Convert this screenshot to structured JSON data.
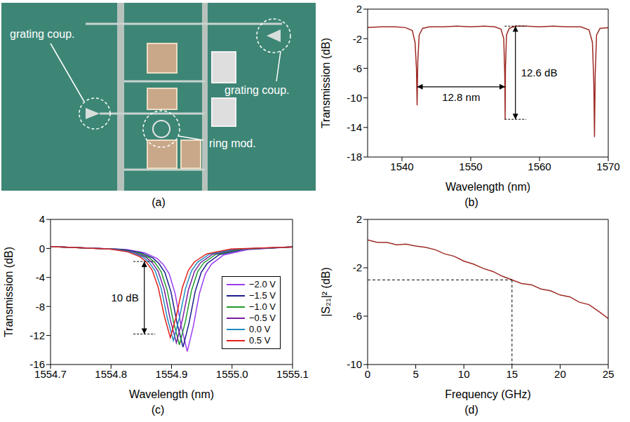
{
  "photo": {
    "caption": "(a)",
    "annotations": [
      "grating coup.",
      "grating coup.",
      "ring mod."
    ]
  },
  "chart_data": [
    {
      "type": "line",
      "caption": "(b)",
      "x_label": "Wavelength (nm)",
      "y_label": "Transmission (dB)",
      "color": "#9e2b25",
      "x": [
        1535,
        1537,
        1539,
        1540.5,
        1541.5,
        1541.9,
        1542.1,
        1542.2,
        1542.3,
        1542.5,
        1543,
        1544,
        1546,
        1548,
        1550,
        1552,
        1553.5,
        1554.4,
        1554.8,
        1554.95,
        1555.0,
        1555.05,
        1555.2,
        1555.6,
        1556.5,
        1558,
        1560,
        1562,
        1564,
        1566,
        1567.2,
        1567.7,
        1567.9,
        1568.0,
        1568.1,
        1568.3,
        1568.8,
        1570
      ],
      "values": [
        -0.5,
        -0.4,
        -0.4,
        -0.5,
        -0.9,
        -2.5,
        -6,
        -11,
        -5,
        -1.5,
        -0.6,
        -0.4,
        -0.4,
        -0.3,
        -0.4,
        -0.3,
        -0.4,
        -0.7,
        -2,
        -7,
        -12.9,
        -6,
        -1.5,
        -0.6,
        -0.3,
        -0.3,
        -0.4,
        -0.3,
        -0.4,
        -0.4,
        -0.8,
        -2.5,
        -8,
        -15.3,
        -7,
        -1.5,
        -0.6,
        -0.5
      ],
      "xlim": [
        1535,
        1570
      ],
      "xticks": [
        1540,
        1550,
        1560,
        1570
      ],
      "ylim": [
        -18,
        2
      ],
      "yticks": [
        -18,
        -14,
        -10,
        -6,
        -2,
        2
      ],
      "grid": false,
      "annotations": [
        {
          "text": "12.8 nm",
          "x": [
            1542.2,
            1555
          ],
          "y": -8.5
        },
        {
          "text": "12.6 dB",
          "x": 1556.5,
          "y": [
            -0.3,
            -12.9
          ]
        }
      ]
    },
    {
      "type": "line",
      "caption": "(c)",
      "x_label": "Wavelength (nm)",
      "y_label": "Transmission (dB)",
      "xlim": [
        1554.7,
        1555.1
      ],
      "xticks": [
        1554.7,
        1554.8,
        1554.9,
        {
          "value": 1555,
          "label": "1555.0"
        },
        1555.1
      ],
      "ylim": [
        -16,
        4
      ],
      "yticks": [
        -16,
        -12,
        -8,
        -4,
        0,
        4
      ],
      "grid": false,
      "legend": "right",
      "series": [
        {
          "name": "−2.0 V",
          "color": "#9a3cf0",
          "x": [
            1554.7,
            1554.826,
            1554.856,
            1554.876,
            1554.886,
            1554.896,
            1554.906,
            1554.916,
            1554.926,
            1554.936,
            1554.946,
            1554.956,
            1554.966,
            1554.986,
            1555.026,
            1555.1
          ],
          "values": [
            0.25,
            -0.15,
            -0.6,
            -1.37,
            -2.17,
            -3.47,
            -6.23,
            -10.72,
            -14.2,
            -10.72,
            -6.23,
            -3.47,
            -2.17,
            -0.9,
            -0.15,
            0.2
          ]
        },
        {
          "name": "−1.5 V",
          "color": "#1c1c8c",
          "x": [
            1554.7,
            1554.819,
            1554.849,
            1554.869,
            1554.879,
            1554.889,
            1554.899,
            1554.909,
            1554.919,
            1554.929,
            1554.939,
            1554.949,
            1554.959,
            1554.979,
            1555.019,
            1555.1
          ],
          "values": [
            0.25,
            -0.13,
            -0.56,
            -1.3,
            -2.06,
            -3.31,
            -5.96,
            -10.26,
            -13.6,
            -10.26,
            -5.96,
            -3.31,
            -2.06,
            -0.85,
            -0.13,
            0.2
          ]
        },
        {
          "name": "−1.0 V",
          "color": "#1f9a2a",
          "x": [
            1554.7,
            1554.813,
            1554.843,
            1554.863,
            1554.873,
            1554.883,
            1554.893,
            1554.903,
            1554.913,
            1554.923,
            1554.933,
            1554.943,
            1554.953,
            1554.973,
            1555.013,
            1555.1
          ],
          "values": [
            0.25,
            -0.12,
            -0.54,
            -1.26,
            -2.01,
            -3.24,
            -5.82,
            -10.04,
            -13.3,
            -10.04,
            -5.82,
            -3.24,
            -2.01,
            -0.83,
            -0.12,
            0.2
          ]
        },
        {
          "name": "−0.5 V",
          "color": "#7a1fa0",
          "x": [
            1554.7,
            1554.808,
            1554.838,
            1554.858,
            1554.868,
            1554.878,
            1554.888,
            1554.898,
            1554.908,
            1554.918,
            1554.928,
            1554.938,
            1554.948,
            1554.968,
            1555.008,
            1555.1
          ],
          "values": [
            0.25,
            -0.11,
            -0.52,
            -1.23,
            -1.96,
            -3.16,
            -5.69,
            -9.81,
            -13.0,
            -9.81,
            -5.69,
            -3.16,
            -1.96,
            -0.8,
            -0.11,
            0.2
          ]
        },
        {
          "name": "0.0 V",
          "color": "#1f8cc0",
          "x": [
            1554.7,
            1554.803,
            1554.833,
            1554.853,
            1554.863,
            1554.873,
            1554.883,
            1554.893,
            1554.903,
            1554.913,
            1554.923,
            1554.933,
            1554.943,
            1554.963,
            1555.003,
            1555.1
          ],
          "values": [
            0.25,
            -0.1,
            -0.51,
            -1.2,
            -1.91,
            -3.08,
            -5.55,
            -9.58,
            -12.7,
            -9.58,
            -5.55,
            -3.08,
            -1.91,
            -0.78,
            -0.1,
            0.2
          ]
        },
        {
          "name": "0.5 V",
          "color": "#e0201b",
          "x": [
            1554.7,
            1554.798,
            1554.828,
            1554.848,
            1554.858,
            1554.868,
            1554.878,
            1554.888,
            1554.898,
            1554.908,
            1554.918,
            1554.928,
            1554.938,
            1554.958,
            1554.998,
            1555.1
          ],
          "values": [
            0.25,
            -0.09,
            -0.48,
            -1.15,
            -1.84,
            -2.98,
            -5.37,
            -9.28,
            -12.3,
            -9.28,
            -5.37,
            -2.98,
            -1.84,
            -0.75,
            -0.09,
            0.2
          ]
        }
      ],
      "annotations": [
        {
          "text": "10 dB",
          "x": 1554.855,
          "y": [
            -1.8,
            -11.8
          ]
        }
      ]
    },
    {
      "type": "line",
      "caption": "(d)",
      "x_label": "Frequency (GHz)",
      "y_label": "|S₂₁|² (dB)",
      "color": "#9e2b25",
      "x": [
        0,
        1,
        2,
        3,
        4,
        5,
        6,
        7,
        8,
        9,
        10,
        11,
        12,
        13,
        14,
        15,
        16,
        17,
        18,
        19,
        20,
        21,
        22,
        23,
        24,
        25
      ],
      "values": [
        0.3,
        0.1,
        0.1,
        -0.1,
        -0.05,
        -0.2,
        -0.3,
        -0.5,
        -0.85,
        -1.05,
        -1.45,
        -1.7,
        -2.05,
        -2.3,
        -2.7,
        -3.0,
        -3.3,
        -3.4,
        -3.75,
        -3.9,
        -4.25,
        -4.4,
        -4.85,
        -5.05,
        -5.6,
        -6.2
      ],
      "xlim": [
        0,
        25
      ],
      "xticks": [
        0,
        5,
        10,
        15,
        20,
        25
      ],
      "ylim": [
        -10,
        2
      ],
      "yticks": [
        -10,
        -6,
        -2,
        2
      ],
      "grid": false,
      "guide_lines": {
        "x": 15,
        "y": -3
      }
    }
  ]
}
